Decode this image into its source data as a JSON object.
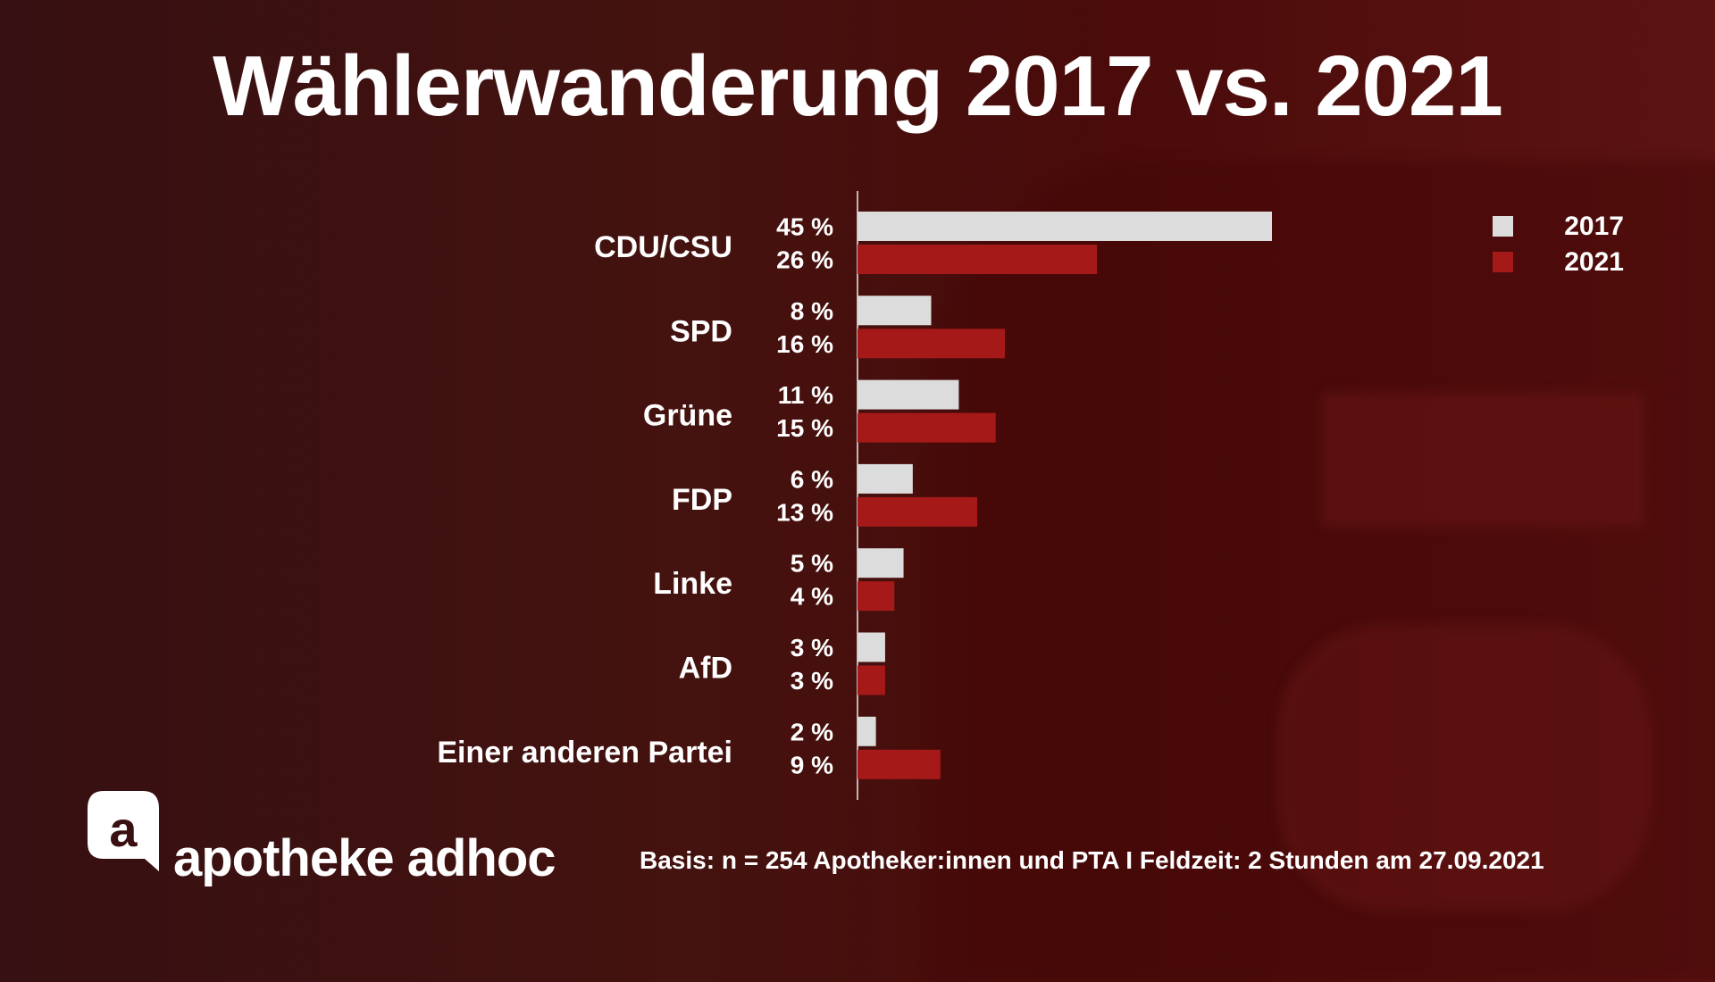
{
  "title": "Wählerwanderung 2017 vs. 2021",
  "footer": "Basis: n = 254 Apotheker:innen und PTA I Feldzeit: 2 Stunden am 27.09.2021",
  "logo_text": "apotheke adhoc",
  "colors": {
    "2017": "#dcdcdc",
    "2021": "#a51a18",
    "background": "#44120f"
  },
  "chart_data": {
    "type": "bar",
    "orientation": "horizontal",
    "categories": [
      "CDU/CSU",
      "SPD",
      "Grüne",
      "FDP",
      "Linke",
      "AfD",
      "Einer anderen Partei"
    ],
    "series": [
      {
        "name": "2017",
        "values": [
          45,
          8,
          11,
          6,
          5,
          3,
          2
        ]
      },
      {
        "name": "2021",
        "values": [
          26,
          16,
          15,
          13,
          4,
          3,
          9
        ]
      }
    ],
    "value_suffix": " %",
    "xlim": [
      0,
      45
    ],
    "grid": false,
    "legend": "top-right"
  }
}
